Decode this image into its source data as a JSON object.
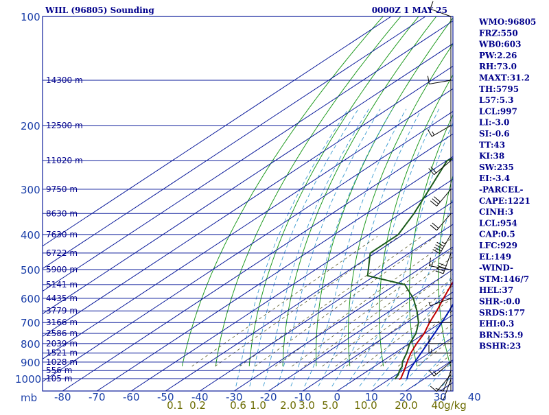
{
  "chart_data": {
    "type": "skew-t",
    "title_left": "WIIL (96805) Sounding",
    "title_right": "0000Z  1 MAY 25",
    "pressure_unit_label": "mb",
    "pressure_ticks": [
      100,
      200,
      300,
      400,
      500,
      600,
      700,
      800,
      900,
      1000
    ],
    "pressure_labels": [
      "100",
      "200",
      "300",
      "400",
      "500",
      "600",
      "700",
      "800",
      "900",
      "1000"
    ],
    "temperature_ticks": [
      -80,
      -70,
      -60,
      -50,
      -40,
      -30,
      -20,
      -10,
      0,
      10,
      20,
      30,
      40
    ],
    "temperature_labels": [
      "-80",
      "-70",
      "-60",
      "-50",
      "-40",
      "-30",
      "-20",
      "-10",
      "0",
      "10",
      "20",
      "30",
      "40"
    ],
    "temperature_range": [
      -80,
      40
    ],
    "pressure_range": [
      1050,
      100
    ],
    "mixing_ratio_labels": [
      {
        "value": 0.1,
        "text": "0.1"
      },
      {
        "value": 0.2,
        "text": "0.2"
      },
      {
        "value": 0.6,
        "text": "0.6"
      },
      {
        "value": 1.0,
        "text": "1.0"
      },
      {
        "value": 2.0,
        "text": "2.0"
      },
      {
        "value": 3.0,
        "text": "3.0"
      },
      {
        "value": 5.0,
        "text": "5.0"
      },
      {
        "value": 10.0,
        "text": "10.0"
      },
      {
        "value": 20.0,
        "text": "20.0"
      },
      {
        "value": 40.0,
        "text": "40"
      }
    ],
    "mixing_ratio_unit": "g/kg",
    "height_labels": [
      {
        "p": 150,
        "text": "14300 m"
      },
      {
        "p": 200,
        "text": "12500 m"
      },
      {
        "p": 250,
        "text": "11020 m"
      },
      {
        "p": 300,
        "text": "9750 m"
      },
      {
        "p": 350,
        "text": "8630 m"
      },
      {
        "p": 400,
        "text": "7630 m"
      },
      {
        "p": 450,
        "text": "6722 m"
      },
      {
        "p": 500,
        "text": "5900 m"
      },
      {
        "p": 550,
        "text": "5141 m"
      },
      {
        "p": 600,
        "text": "4435 m"
      },
      {
        "p": 650,
        "text": "3779 m"
      },
      {
        "p": 700,
        "text": "3166 m"
      },
      {
        "p": 750,
        "text": "2586 m"
      },
      {
        "p": 800,
        "text": "2039 m"
      },
      {
        "p": 850,
        "text": "1521 m"
      },
      {
        "p": 900,
        "text": "1028 m"
      },
      {
        "p": 950,
        "text": "556 m"
      },
      {
        "p": 1000,
        "text": "105 m"
      }
    ],
    "series": [
      {
        "name": "temperature",
        "color": "#c00000",
        "points": [
          {
            "p": 1004,
            "t": 24.2
          },
          {
            "p": 1000,
            "t": 24.4
          },
          {
            "p": 975,
            "t": 23.0
          },
          {
            "p": 950,
            "t": 21.6
          },
          {
            "p": 925,
            "t": 20.0
          },
          {
            "p": 900,
            "t": 18.4
          },
          {
            "p": 850,
            "t": 15.2
          },
          {
            "p": 800,
            "t": 12.4
          },
          {
            "p": 750,
            "t": 9.8
          },
          {
            "p": 700,
            "t": 6.2
          },
          {
            "p": 650,
            "t": 2.8
          },
          {
            "p": 600,
            "t": -1.2
          },
          {
            "p": 550,
            "t": -5.4
          },
          {
            "p": 500,
            "t": -9.8
          },
          {
            "p": 450,
            "t": -15.4
          },
          {
            "p": 400,
            "t": -21.4
          },
          {
            "p": 350,
            "t": -29.8
          },
          {
            "p": 300,
            "t": -38.6
          },
          {
            "p": 250,
            "t": -48.6
          },
          {
            "p": 200,
            "t": -59.4
          },
          {
            "p": 175,
            "t": -65.4
          },
          {
            "p": 150,
            "t": -70.9
          },
          {
            "p": 125,
            "t": -76.9
          },
          {
            "p": 115,
            "t": -78.5
          }
        ]
      },
      {
        "name": "dewpoint",
        "color": "#1a5a1a",
        "points": [
          {
            "p": 1004,
            "t": 23.0
          },
          {
            "p": 1000,
            "t": 22.8
          },
          {
            "p": 975,
            "t": 21.8
          },
          {
            "p": 950,
            "t": 20.2
          },
          {
            "p": 925,
            "t": 19.0
          },
          {
            "p": 900,
            "t": 17.0
          },
          {
            "p": 850,
            "t": 14.0
          },
          {
            "p": 800,
            "t": 10.4
          },
          {
            "p": 750,
            "t": 7.4
          },
          {
            "p": 700,
            "t": 3.0
          },
          {
            "p": 650,
            "t": -3.0
          },
          {
            "p": 600,
            "t": -10.0
          },
          {
            "p": 550,
            "t": -19.0
          },
          {
            "p": 520,
            "t": -34.0
          },
          {
            "p": 450,
            "t": -44.0
          },
          {
            "p": 400,
            "t": -44.6
          },
          {
            "p": 350,
            "t": -50.0
          },
          {
            "p": 300,
            "t": -57.0
          },
          {
            "p": 250,
            "t": -65.4
          },
          {
            "p": 230,
            "t": -60.0
          },
          {
            "p": 200,
            "t": -71.0
          },
          {
            "p": 175,
            "t": -80.0
          },
          {
            "p": 150,
            "t": -90.0
          },
          {
            "p": 125,
            "t": -95.0
          },
          {
            "p": 115,
            "t": -98.0
          }
        ]
      },
      {
        "name": "parcel",
        "color": "#0018b0",
        "points": [
          {
            "p": 1000,
            "t": 26.2
          },
          {
            "p": 950,
            "t": 23.0
          },
          {
            "p": 900,
            "t": 20.6
          },
          {
            "p": 850,
            "t": 18.2
          },
          {
            "p": 800,
            "t": 15.6
          },
          {
            "p": 750,
            "t": 12.8
          },
          {
            "p": 700,
            "t": 9.8
          },
          {
            "p": 650,
            "t": 6.4
          },
          {
            "p": 600,
            "t": 2.6
          },
          {
            "p": 550,
            "t": -1.6
          },
          {
            "p": 500,
            "t": -6.4
          },
          {
            "p": 450,
            "t": -12.0
          },
          {
            "p": 400,
            "t": -18.4
          },
          {
            "p": 350,
            "t": -26.0
          },
          {
            "p": 300,
            "t": -35.0
          },
          {
            "p": 250,
            "t": -46.0
          },
          {
            "p": 200,
            "t": -58.6
          },
          {
            "p": 175,
            "t": -65.8
          },
          {
            "p": 150,
            "t": -73.0
          },
          {
            "p": 120,
            "t": -79.5
          },
          {
            "p": 110,
            "t": -82.0
          }
        ]
      }
    ],
    "wind_barbs": [
      {
        "p": 1004,
        "dir": 200,
        "kt": 5
      },
      {
        "p": 975,
        "dir": 220,
        "kt": 10
      },
      {
        "p": 950,
        "dir": 200,
        "kt": 10
      },
      {
        "p": 900,
        "dir": 230,
        "kt": 15
      },
      {
        "p": 850,
        "dir": 270,
        "kt": 15
      },
      {
        "p": 800,
        "dir": 270,
        "kt": 10
      },
      {
        "p": 700,
        "dir": 270,
        "kt": 5
      },
      {
        "p": 600,
        "dir": 250,
        "kt": 5
      },
      {
        "p": 500,
        "dir": 280,
        "kt": 15
      },
      {
        "p": 450,
        "dir": 200,
        "kt": 40
      },
      {
        "p": 400,
        "dir": 210,
        "kt": 45
      },
      {
        "p": 350,
        "dir": 220,
        "kt": 20
      },
      {
        "p": 300,
        "dir": 220,
        "kt": 30
      },
      {
        "p": 250,
        "dir": 230,
        "kt": 20
      },
      {
        "p": 200,
        "dir": 240,
        "kt": 15
      },
      {
        "p": 150,
        "dir": 260,
        "kt": 10
      },
      {
        "p": 100,
        "dir": 290,
        "kt": 10
      }
    ],
    "indices": [
      "WMO:96805",
      "FRZ:550",
      "WB0:603",
      "PW:2.26",
      "RH:73.0",
      "MAXT:31.2",
      "TH:5795",
      "L57:5.3",
      "LCL:997",
      "LI:-3.0",
      "SI:-0.6",
      "TT:43",
      "KI:38",
      "SW:235",
      "EI:-3.4",
      "-PARCEL-",
      "CAPE:1221",
      "CINH:3",
      "LCL:954",
      "CAP:0.5",
      "LFC:929",
      "EL:149",
      "-WIND-",
      "STM:146/7",
      "HEL:37",
      "SHR-:0.0",
      "SRDS:177",
      "EHI:0.3",
      "BRN:53.9",
      "BSHR:23"
    ],
    "colors": {
      "frame": "#0a1a9a",
      "isobar": "#0a1a9a",
      "isotherm": "#0a1a9a",
      "dry_adiabat": "#1f9a1f",
      "moist_adiabat": "#3a9ad0",
      "mixing_ratio": "#555522",
      "temperature": "#c00000",
      "dewpoint": "#1a5a1a",
      "parcel": "#0018b0"
    }
  }
}
